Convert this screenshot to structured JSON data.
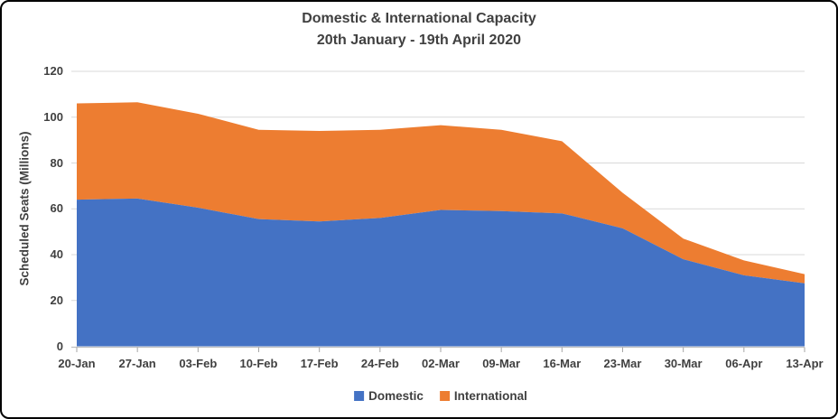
{
  "chart_data": {
    "type": "area",
    "stacked": true,
    "title": "Domestic & International Capacity",
    "subtitle": "20th January - 19th April 2020",
    "ylabel": "Scheduled Seats (Millions)",
    "xlabel": "",
    "ylim": [
      0,
      120
    ],
    "y_ticks": [
      0,
      20,
      40,
      60,
      80,
      100,
      120
    ],
    "grid": "horizontal",
    "legend_position": "bottom",
    "categories": [
      "20-Jan",
      "27-Jan",
      "03-Feb",
      "10-Feb",
      "17-Feb",
      "24-Feb",
      "02-Mar",
      "09-Mar",
      "16-Mar",
      "23-Mar",
      "30-Mar",
      "06-Apr",
      "13-Apr"
    ],
    "series": [
      {
        "name": "Domestic",
        "color": "#4472C4",
        "values": [
          64,
          64.5,
          60.5,
          55.5,
          54.5,
          56,
          59.5,
          59,
          58,
          51.5,
          38,
          31,
          27.5
        ]
      },
      {
        "name": "International",
        "color": "#ED7D31",
        "values": [
          42,
          42,
          41,
          39,
          39.5,
          38.5,
          37,
          35.5,
          31.5,
          15.5,
          9,
          6.5,
          4
        ]
      }
    ],
    "stacked_totals": [
      106,
      106.5,
      101.5,
      94.5,
      94,
      94.5,
      96.5,
      94.5,
      89.5,
      67,
      47,
      37.5,
      31.5
    ],
    "colors": {
      "text": "#404040",
      "gridline": "#D9D9D9",
      "axis_line": "#BFBFBF"
    }
  }
}
